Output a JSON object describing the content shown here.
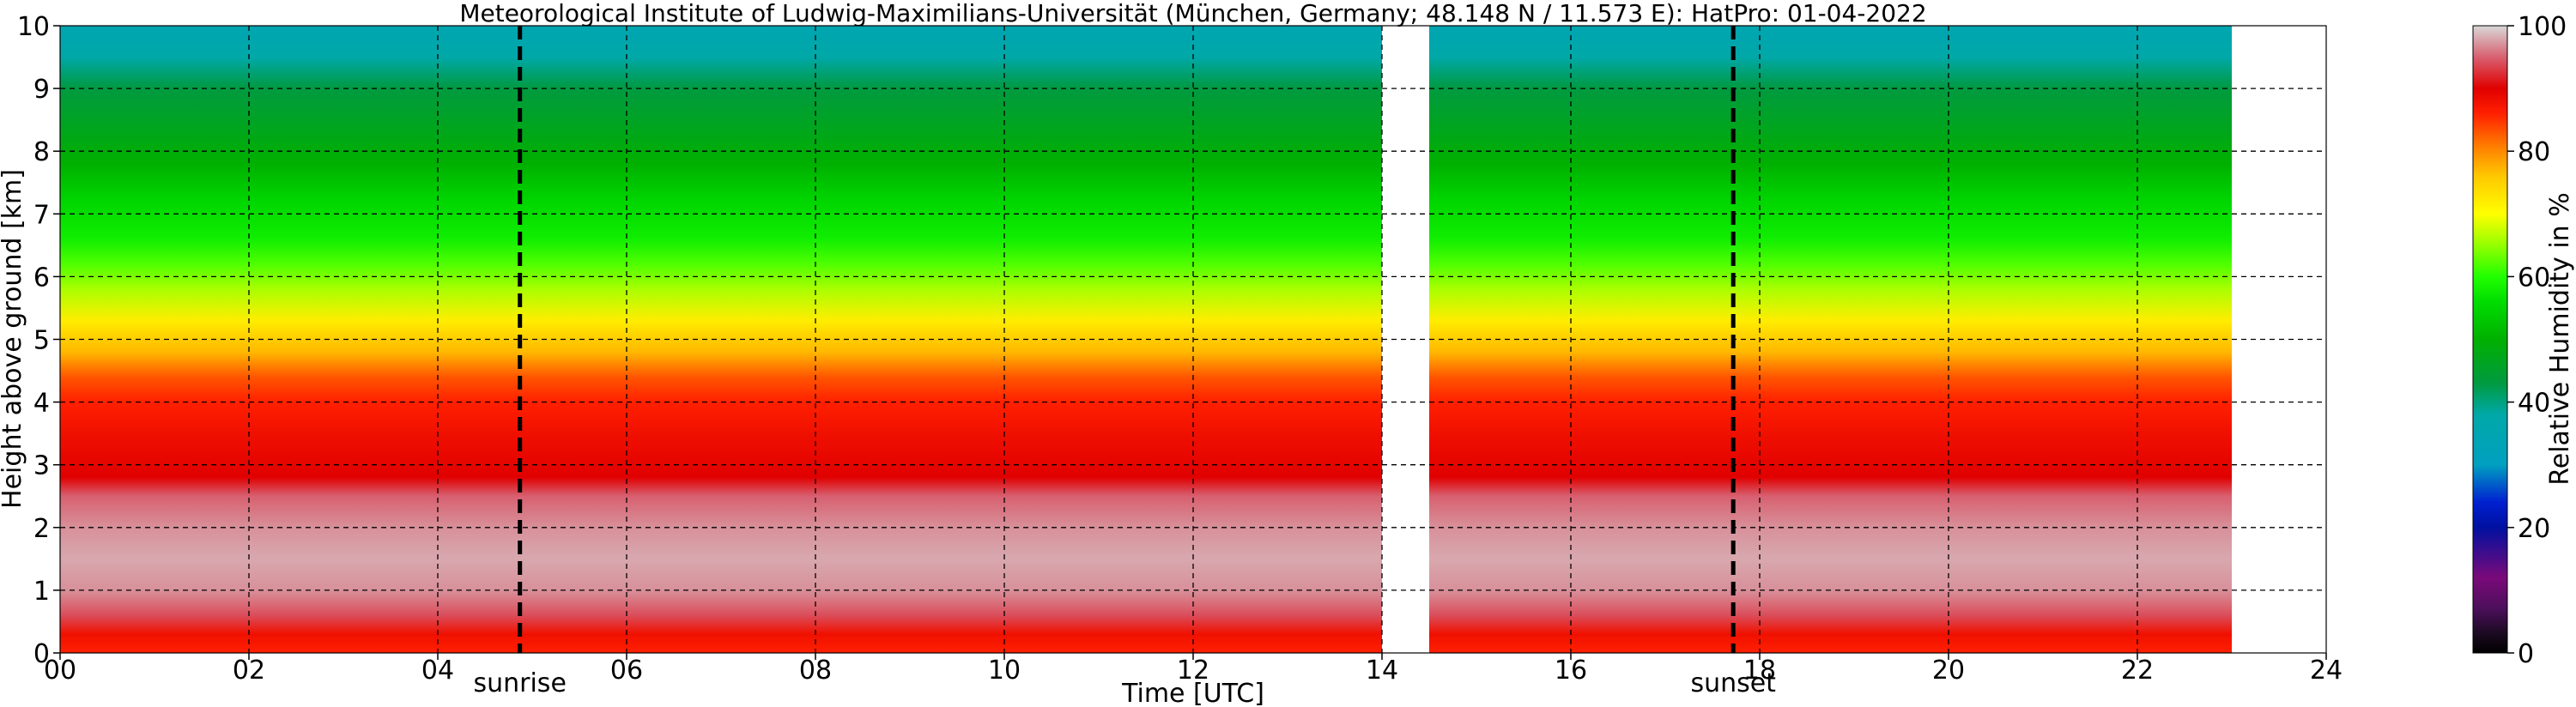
{
  "chart_data": {
    "type": "heatmap",
    "title": "Meteorological Institute of Ludwig-Maximilians-Universität (München, Germany; 48.148 N / 11.573 E):    HatPro: 01-04-2022",
    "xlabel": "Time [UTC]",
    "ylabel": "Height above ground [km]",
    "x_ticks": [
      "00",
      "02",
      "04",
      "06",
      "08",
      "10",
      "12",
      "14",
      "16",
      "18",
      "20",
      "22",
      "24"
    ],
    "y_ticks": [
      "0",
      "1",
      "2",
      "3",
      "4",
      "5",
      "6",
      "7",
      "8",
      "9",
      "10"
    ],
    "xlim": [
      0,
      24
    ],
    "ylim": [
      0,
      10
    ],
    "grid": true,
    "data_gaps_utc": [
      [
        14.0,
        14.5
      ],
      [
        23.0,
        24.0
      ]
    ],
    "sunrise_utc": 4.87,
    "sunset_utc": 17.72,
    "sunrise_label": "sunrise",
    "sunset_label": "sunset",
    "colorbar": {
      "label": "Relative Humidity in %",
      "ticks": [
        "0",
        "20",
        "40",
        "60",
        "80",
        "100"
      ],
      "range": [
        0,
        100
      ]
    },
    "rh_profile": [
      {
        "height_km": 0.0,
        "rh": 86
      },
      {
        "height_km": 0.3,
        "rh": 88
      },
      {
        "height_km": 0.6,
        "rh": 94
      },
      {
        "height_km": 1.0,
        "rh": 97
      },
      {
        "height_km": 1.5,
        "rh": 98
      },
      {
        "height_km": 2.0,
        "rh": 97
      },
      {
        "height_km": 2.5,
        "rh": 95
      },
      {
        "height_km": 2.8,
        "rh": 90
      },
      {
        "height_km": 3.5,
        "rh": 88
      },
      {
        "height_km": 4.0,
        "rh": 86
      },
      {
        "height_km": 4.4,
        "rh": 83
      },
      {
        "height_km": 4.8,
        "rh": 77
      },
      {
        "height_km": 5.3,
        "rh": 72
      },
      {
        "height_km": 5.8,
        "rh": 66
      },
      {
        "height_km": 6.2,
        "rh": 62
      },
      {
        "height_km": 6.6,
        "rh": 58
      },
      {
        "height_km": 7.2,
        "rh": 55
      },
      {
        "height_km": 7.8,
        "rh": 50
      },
      {
        "height_km": 8.5,
        "rh": 46
      },
      {
        "height_km": 9.0,
        "rh": 43
      },
      {
        "height_km": 9.5,
        "rh": 38
      },
      {
        "height_km": 10.0,
        "rh": 35
      }
    ],
    "colorscale": [
      {
        "rh": 0,
        "color": "#000000"
      },
      {
        "rh": 3,
        "color": "#1a0a20"
      },
      {
        "rh": 7,
        "color": "#4b0f5a"
      },
      {
        "rh": 12,
        "color": "#7a0a7a"
      },
      {
        "rh": 20,
        "color": "#0010a0"
      },
      {
        "rh": 24,
        "color": "#0020d0"
      },
      {
        "rh": 30,
        "color": "#00a0c0"
      },
      {
        "rh": 38,
        "color": "#00a8a8"
      },
      {
        "rh": 43,
        "color": "#009a40"
      },
      {
        "rh": 50,
        "color": "#00b000"
      },
      {
        "rh": 56,
        "color": "#00dd00"
      },
      {
        "rh": 60,
        "color": "#22ff00"
      },
      {
        "rh": 66,
        "color": "#aaff00"
      },
      {
        "rh": 70,
        "color": "#ffff00"
      },
      {
        "rh": 76,
        "color": "#ffc800"
      },
      {
        "rh": 81,
        "color": "#ff7a00"
      },
      {
        "rh": 86,
        "color": "#ff2000"
      },
      {
        "rh": 90,
        "color": "#e00000"
      },
      {
        "rh": 95,
        "color": "#d86070"
      },
      {
        "rh": 100,
        "color": "#d8d8d8"
      }
    ]
  }
}
